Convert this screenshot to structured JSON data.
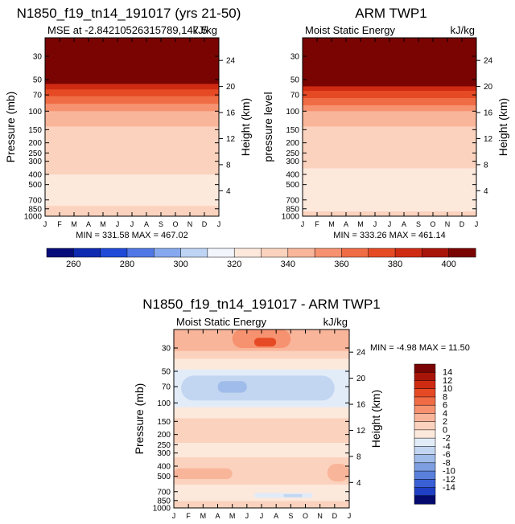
{
  "figure": {
    "left_title": "N1850_f19_tn14_191017 (yrs 21-50)",
    "right_title": "ARM TWP1",
    "bottom_title": "N1850_f19_tn14_191017 - ARM TWP1"
  },
  "colors": {
    "positive": [
      "#fde8dc",
      "#fbd2bd",
      "#f9b59a",
      "#f6926f",
      "#f06c45",
      "#e54a25",
      "#cf2b12",
      "#a81508",
      "#7a0402"
    ],
    "negative": [
      "#e2ecf8",
      "#c3d6f1",
      "#a0bcea",
      "#7d9fe2",
      "#5a80dc",
      "#3a60d6",
      "#1f40c4",
      "#0f22a0",
      "#040a6e"
    ],
    "absolute_bar": [
      "#070c7a",
      "#0e2ab0",
      "#1f4ad8",
      "#4f78e6",
      "#86a8ee",
      "#bed4f4",
      "#f2f6fc",
      "#fde8dc",
      "#fbd2bd",
      "#f9b59a",
      "#f6926f",
      "#f06c45",
      "#e54a25",
      "#cf2b12",
      "#a81508",
      "#7a0402"
    ]
  },
  "chart_data": [
    {
      "type": "heatmap",
      "title": "N1850_f19_tn14_191017 (yrs 21-50)",
      "left_string": "MSE at -2.84210526315789,147.5",
      "right_string": "kJ/kg",
      "ylabel": "Pressure (mb)",
      "ylabel_right": "Height (km)",
      "x_ticks": [
        "J",
        "F",
        "M",
        "A",
        "M",
        "J",
        "J",
        "A",
        "S",
        "O",
        "N",
        "D",
        "J"
      ],
      "y_ticks": [
        "30",
        "50",
        "70",
        "100",
        "150",
        "200",
        "250",
        "300",
        "400",
        "500",
        "700",
        "850",
        "1000"
      ],
      "y_ticks_right": [
        "24",
        "20",
        "16",
        "12",
        "8",
        "4"
      ],
      "stats": "MIN = 331.58   MAX = 467.02",
      "min": 331.58,
      "max": 467.02,
      "pressure_range": [
        1000,
        20
      ],
      "bands_top_to_bottom": [
        {
          "from_p": 20,
          "to_p": 55,
          "level": ">400"
        },
        {
          "from_p": 55,
          "to_p": 62,
          "level": "380-400"
        },
        {
          "from_p": 62,
          "to_p": 72,
          "level": "370-380"
        },
        {
          "from_p": 72,
          "to_p": 85,
          "level": "360-370"
        },
        {
          "from_p": 85,
          "to_p": 100,
          "level": "350-360"
        },
        {
          "from_p": 100,
          "to_p": 140,
          "level": "340-350"
        },
        {
          "from_p": 140,
          "to_p": 400,
          "level": "330-340"
        },
        {
          "from_p": 400,
          "to_p": 800,
          "level": "320-330"
        },
        {
          "from_p": 800,
          "to_p": 1000,
          "level": "330-340"
        }
      ]
    },
    {
      "type": "heatmap",
      "title": "ARM TWP1",
      "left_string": "Moist Static Energy",
      "right_string": "kJ/kg",
      "ylabel": "pressure level",
      "ylabel_right": "Height (km)",
      "x_ticks": [
        "J",
        "F",
        "M",
        "A",
        "M",
        "J",
        "J",
        "A",
        "S",
        "O",
        "N",
        "D",
        "J"
      ],
      "y_ticks": [
        "30",
        "50",
        "70",
        "100",
        "150",
        "200",
        "250",
        "300",
        "400",
        "500",
        "700",
        "850",
        "1000"
      ],
      "y_ticks_right": [
        "24",
        "20",
        "16",
        "12",
        "8",
        "4"
      ],
      "stats": "MIN = 333.26   MAX = 461.14",
      "min": 333.26,
      "max": 461.14,
      "pressure_range": [
        1000,
        20
      ],
      "bands_top_to_bottom": [
        {
          "from_p": 20,
          "to_p": 58,
          "level": ">400"
        },
        {
          "from_p": 58,
          "to_p": 64,
          "level": "380-400"
        },
        {
          "from_p": 64,
          "to_p": 75,
          "level": "370-380"
        },
        {
          "from_p": 75,
          "to_p": 88,
          "level": "360-370"
        },
        {
          "from_p": 88,
          "to_p": 100,
          "level": "350-360"
        },
        {
          "from_p": 100,
          "to_p": 140,
          "level": "340-350"
        },
        {
          "from_p": 140,
          "to_p": 350,
          "level": "330-340"
        },
        {
          "from_p": 350,
          "to_p": 900,
          "level": "320-330"
        },
        {
          "from_p": 900,
          "to_p": 1000,
          "level": "330-340"
        }
      ]
    },
    {
      "type": "heatmap",
      "title": "N1850_f19_tn14_191017 - ARM TWP1",
      "left_string": "Moist Static Energy",
      "right_string": "kJ/kg",
      "ylabel": "Pressure (mb)",
      "ylabel_right": "Height (km)",
      "x_ticks": [
        "J",
        "F",
        "M",
        "A",
        "M",
        "J",
        "J",
        "A",
        "S",
        "O",
        "N",
        "D",
        "J"
      ],
      "y_ticks": [
        "30",
        "50",
        "70",
        "100",
        "150",
        "200",
        "250",
        "300",
        "400",
        "500",
        "700",
        "850",
        "1000"
      ],
      "y_ticks_right": [
        "24",
        "20",
        "16",
        "12",
        "8",
        "4"
      ],
      "stats": "MIN =  -4.98   MAX =  11.50",
      "min": -4.98,
      "max": 11.5,
      "pressure_range": [
        1000,
        20
      ],
      "background_level": "0 to 2",
      "features": [
        {
          "level": "2-4",
          "month_range": [
            0,
            12
          ],
          "pressure_range": [
            20,
            38
          ]
        },
        {
          "level": "4-6",
          "month_range": [
            0,
            12
          ],
          "pressure_range": [
            20,
            32
          ]
        },
        {
          "level": "6-8",
          "month_range": [
            4,
            8
          ],
          "pressure_range": [
            20,
            30
          ]
        },
        {
          "level": "10-12",
          "month_range": [
            5.5,
            7
          ],
          "pressure_range": [
            24,
            29
          ]
        },
        {
          "level": "-2 to 0",
          "month_range": [
            0,
            12
          ],
          "pressure_range": [
            48,
            110
          ]
        },
        {
          "level": "-4 to -2",
          "month_range": [
            0.5,
            11
          ],
          "pressure_range": [
            55,
            95
          ]
        },
        {
          "level": "-6 to -4",
          "month_range": [
            3,
            5
          ],
          "pressure_range": [
            62,
            80
          ]
        },
        {
          "level": "2-4",
          "month_range": [
            0,
            12
          ],
          "pressure_range": [
            140,
            240
          ]
        },
        {
          "level": "2-4",
          "month_range": [
            0,
            12
          ],
          "pressure_range": [
            330,
            600
          ]
        },
        {
          "level": "4-6",
          "month_range": [
            0,
            4
          ],
          "pressure_range": [
            420,
            530
          ]
        },
        {
          "level": "4-6",
          "month_range": [
            10.5,
            12
          ],
          "pressure_range": [
            380,
            560
          ]
        },
        {
          "level": "-2 to 0",
          "month_range": [
            5.5,
            9.5
          ],
          "pressure_range": [
            720,
            800
          ]
        },
        {
          "level": "-4 to -2",
          "month_range": [
            7.5,
            8.8
          ],
          "pressure_range": [
            740,
            790
          ]
        },
        {
          "level": "2-4",
          "month_range": [
            0,
            12
          ],
          "pressure_range": [
            860,
            1000
          ]
        }
      ]
    }
  ],
  "colorbar_top": {
    "labels": [
      "260",
      "280",
      "300",
      "320",
      "340",
      "360",
      "380",
      "400"
    ]
  },
  "colorbar_diff": {
    "labels": [
      "14",
      "12",
      "10",
      "8",
      "6",
      "4",
      "2",
      "0",
      "-2",
      "-4",
      "-6",
      "-8",
      "-10",
      "-12",
      "-14"
    ]
  }
}
